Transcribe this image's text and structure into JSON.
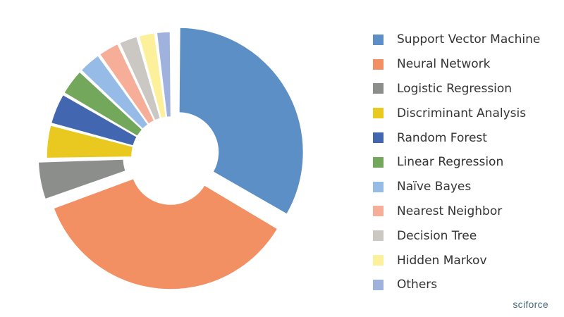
{
  "chart_data": {
    "type": "pie",
    "donut": true,
    "exploded_slices": [
      "Support Vector Machine",
      "Neural Network",
      "Logistic Regression"
    ],
    "legend_position": "right",
    "slices": [
      {
        "label": "Support Vector Machine",
        "value": 33.2,
        "color": "#5b8fc6"
      },
      {
        "label": "Neural Network",
        "value": 35.8,
        "color": "#f28f63"
      },
      {
        "label": "Logistic Regression",
        "value": 5.1,
        "color": "#8c8e8b"
      },
      {
        "label": "Discriminant Analysis",
        "value": 4.5,
        "color": "#e9c81f"
      },
      {
        "label": "Random Forest",
        "value": 4.2,
        "color": "#4266b0"
      },
      {
        "label": "Linear Regression",
        "value": 3.6,
        "color": "#72a75c"
      },
      {
        "label": "Naïve Bayes",
        "value": 3.1,
        "color": "#95bbe6"
      },
      {
        "label": "Nearest Neighbor",
        "value": 2.9,
        "color": "#f7ae98"
      },
      {
        "label": "Decision Tree",
        "value": 2.6,
        "color": "#cbc8c3"
      },
      {
        "label": "Hidden Markov",
        "value": 2.3,
        "color": "#fdf09a"
      },
      {
        "label": "Others",
        "value": 2.0,
        "color": "#9fb2dd"
      }
    ]
  },
  "brand": {
    "text": "sciforce"
  }
}
